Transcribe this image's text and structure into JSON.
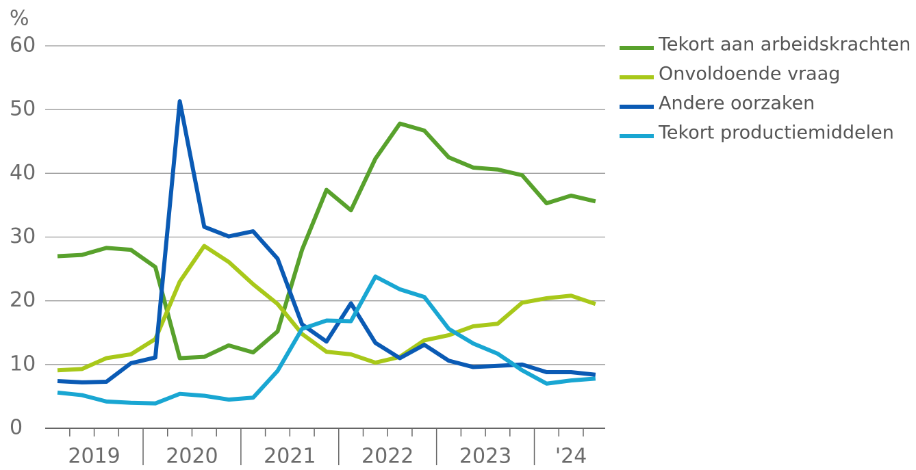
{
  "chart_data": {
    "type": "line",
    "y_label": "%",
    "categories": [
      null,
      null,
      null,
      null,
      null,
      null,
      null,
      null,
      null,
      null,
      null,
      null,
      null,
      null,
      null,
      null,
      null,
      null,
      null,
      null,
      null,
      null,
      null
    ],
    "year_labels": [
      "2019",
      "2020",
      "2021",
      "2022",
      "2023",
      "'24"
    ],
    "ylim": [
      0,
      60
    ],
    "yticks": [
      0,
      10,
      20,
      30,
      40,
      50,
      60
    ],
    "grid": true,
    "legend": "right",
    "series": [
      {
        "name": "Tekort aan arbeidskrachten",
        "color": "#58a12c",
        "values": [
          27.0,
          27.2,
          28.3,
          28.0,
          25.3,
          11.0,
          11.2,
          13.0,
          11.9,
          15.2,
          28.0,
          37.4,
          34.2,
          42.3,
          47.8,
          46.7,
          42.5,
          40.9,
          40.6,
          39.7,
          35.3,
          36.5,
          35.6
        ]
      },
      {
        "name": "Onvoldoende vraag",
        "color": "#a8c81a",
        "values": [
          9.1,
          9.3,
          11.0,
          11.6,
          14.0,
          23.0,
          28.6,
          26.1,
          22.6,
          19.5,
          14.8,
          12.0,
          11.6,
          10.3,
          11.2,
          13.8,
          14.6,
          16.0,
          16.4,
          19.7,
          20.4,
          20.8,
          19.5
        ]
      },
      {
        "name": "Andere oorzaken",
        "color": "#0a5ab4",
        "values": [
          7.4,
          7.2,
          7.3,
          10.2,
          11.1,
          51.3,
          31.6,
          30.1,
          30.9,
          26.6,
          16.3,
          13.6,
          19.6,
          13.4,
          11.0,
          13.1,
          10.6,
          9.6,
          9.8,
          10.0,
          8.8,
          8.8,
          8.4
        ]
      },
      {
        "name": "Tekort productiemiddelen",
        "color": "#19a6d2",
        "values": [
          5.6,
          5.2,
          4.2,
          4.0,
          3.9,
          5.4,
          5.1,
          4.5,
          4.8,
          9.0,
          15.6,
          16.9,
          16.8,
          23.8,
          21.8,
          20.6,
          15.6,
          13.3,
          11.7,
          9.1,
          7.0,
          7.5,
          7.8
        ]
      }
    ]
  }
}
